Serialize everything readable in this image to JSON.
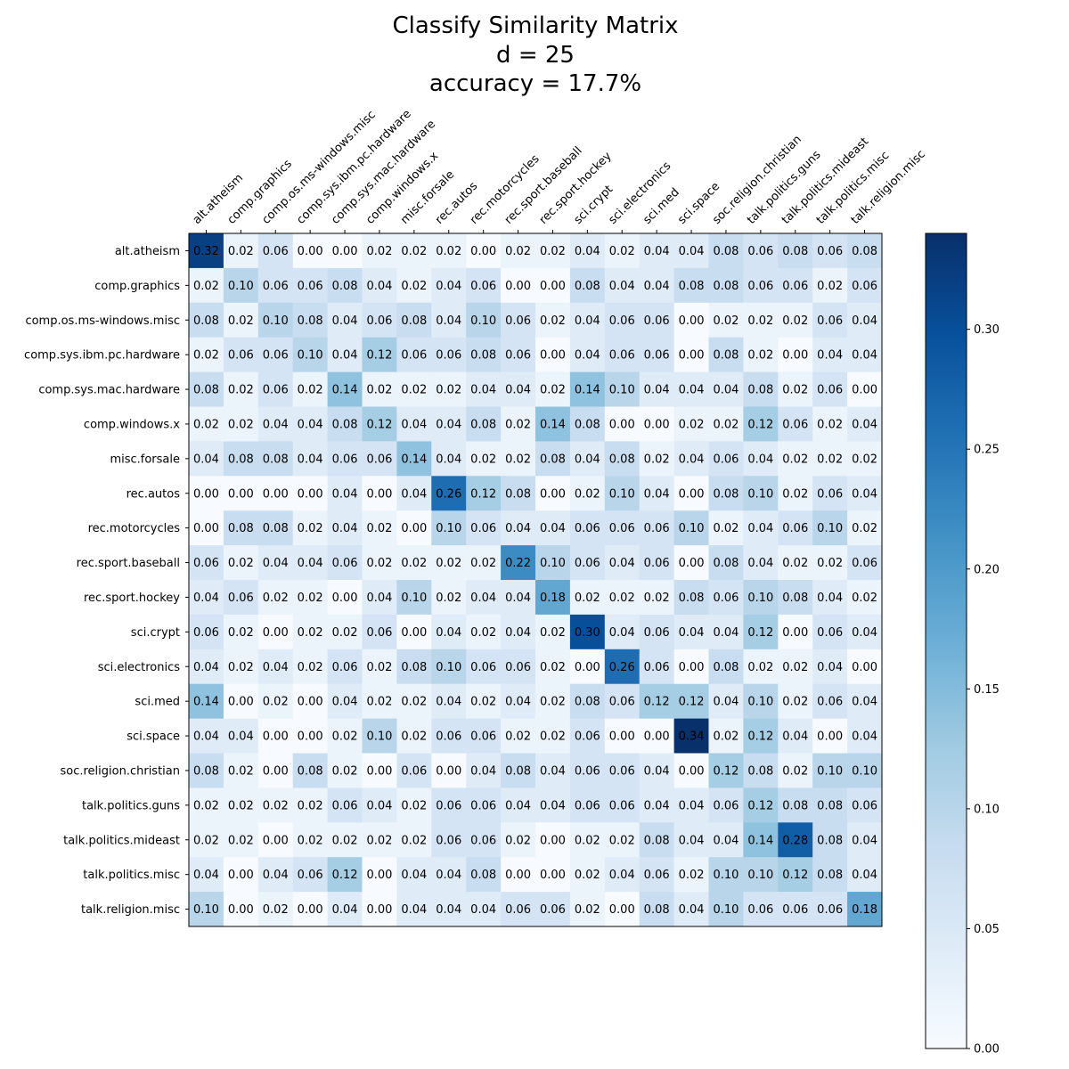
{
  "chart_data": {
    "type": "heatmap",
    "title_lines": [
      "Classify Similarity Matrix",
      "d = 25",
      "accuracy = 17.7%"
    ],
    "labels": [
      "alt.atheism",
      "comp.graphics",
      "comp.os.ms-windows.misc",
      "comp.sys.ibm.pc.hardware",
      "comp.sys.mac.hardware",
      "comp.windows.x",
      "misc.forsale",
      "rec.autos",
      "rec.motorcycles",
      "rec.sport.baseball",
      "rec.sport.hockey",
      "sci.crypt",
      "sci.electronics",
      "sci.med",
      "sci.space",
      "soc.religion.christian",
      "talk.politics.guns",
      "talk.politics.mideast",
      "talk.politics.misc",
      "talk.religion.misc"
    ],
    "matrix": [
      [
        0.32,
        0.02,
        0.06,
        0.0,
        0.0,
        0.02,
        0.02,
        0.02,
        0.0,
        0.02,
        0.02,
        0.04,
        0.02,
        0.04,
        0.04,
        0.08,
        0.06,
        0.08,
        0.06,
        0.08
      ],
      [
        0.02,
        0.1,
        0.06,
        0.06,
        0.08,
        0.04,
        0.02,
        0.04,
        0.06,
        0.0,
        0.0,
        0.08,
        0.04,
        0.04,
        0.08,
        0.08,
        0.06,
        0.06,
        0.02,
        0.06
      ],
      [
        0.08,
        0.02,
        0.1,
        0.08,
        0.04,
        0.06,
        0.08,
        0.04,
        0.1,
        0.06,
        0.02,
        0.04,
        0.06,
        0.06,
        0.0,
        0.02,
        0.02,
        0.02,
        0.06,
        0.04
      ],
      [
        0.02,
        0.06,
        0.06,
        0.1,
        0.04,
        0.12,
        0.06,
        0.06,
        0.08,
        0.06,
        0.0,
        0.04,
        0.06,
        0.06,
        0.0,
        0.08,
        0.02,
        0.0,
        0.04,
        0.04
      ],
      [
        0.08,
        0.02,
        0.06,
        0.02,
        0.14,
        0.02,
        0.02,
        0.02,
        0.04,
        0.04,
        0.02,
        0.14,
        0.1,
        0.04,
        0.04,
        0.04,
        0.08,
        0.02,
        0.06,
        0.0
      ],
      [
        0.02,
        0.02,
        0.04,
        0.04,
        0.08,
        0.12,
        0.04,
        0.04,
        0.08,
        0.02,
        0.14,
        0.08,
        0.0,
        0.0,
        0.02,
        0.02,
        0.12,
        0.06,
        0.02,
        0.04
      ],
      [
        0.04,
        0.08,
        0.08,
        0.04,
        0.06,
        0.06,
        0.14,
        0.04,
        0.02,
        0.02,
        0.08,
        0.04,
        0.08,
        0.02,
        0.04,
        0.06,
        0.04,
        0.02,
        0.02,
        0.02
      ],
      [
        0.0,
        0.0,
        0.0,
        0.0,
        0.04,
        0.0,
        0.04,
        0.26,
        0.12,
        0.08,
        0.0,
        0.02,
        0.1,
        0.04,
        0.0,
        0.08,
        0.1,
        0.02,
        0.06,
        0.04
      ],
      [
        0.0,
        0.08,
        0.08,
        0.02,
        0.04,
        0.02,
        0.0,
        0.1,
        0.06,
        0.04,
        0.04,
        0.06,
        0.06,
        0.06,
        0.1,
        0.02,
        0.04,
        0.06,
        0.1,
        0.02
      ],
      [
        0.06,
        0.02,
        0.04,
        0.04,
        0.06,
        0.02,
        0.02,
        0.02,
        0.02,
        0.22,
        0.1,
        0.06,
        0.04,
        0.06,
        0.0,
        0.08,
        0.04,
        0.02,
        0.02,
        0.06
      ],
      [
        0.04,
        0.06,
        0.02,
        0.02,
        0.0,
        0.04,
        0.1,
        0.02,
        0.04,
        0.04,
        0.18,
        0.02,
        0.02,
        0.02,
        0.08,
        0.06,
        0.1,
        0.08,
        0.04,
        0.02
      ],
      [
        0.06,
        0.02,
        0.0,
        0.02,
        0.02,
        0.06,
        0.0,
        0.04,
        0.02,
        0.04,
        0.02,
        0.3,
        0.04,
        0.06,
        0.04,
        0.04,
        0.12,
        0.0,
        0.06,
        0.04
      ],
      [
        0.04,
        0.02,
        0.04,
        0.02,
        0.06,
        0.02,
        0.08,
        0.1,
        0.06,
        0.06,
        0.02,
        0.0,
        0.26,
        0.06,
        0.0,
        0.08,
        0.02,
        0.02,
        0.04,
        0.0
      ],
      [
        0.14,
        0.0,
        0.02,
        0.0,
        0.04,
        0.02,
        0.02,
        0.04,
        0.02,
        0.04,
        0.02,
        0.08,
        0.06,
        0.12,
        0.12,
        0.04,
        0.1,
        0.02,
        0.06,
        0.04
      ],
      [
        0.04,
        0.04,
        0.0,
        0.0,
        0.02,
        0.1,
        0.02,
        0.06,
        0.06,
        0.02,
        0.02,
        0.06,
        0.0,
        0.0,
        0.34,
        0.02,
        0.12,
        0.04,
        0.0,
        0.04
      ],
      [
        0.08,
        0.02,
        0.0,
        0.08,
        0.02,
        0.0,
        0.06,
        0.0,
        0.04,
        0.08,
        0.04,
        0.06,
        0.06,
        0.04,
        0.0,
        0.12,
        0.08,
        0.02,
        0.1,
        0.1
      ],
      [
        0.02,
        0.02,
        0.02,
        0.02,
        0.06,
        0.04,
        0.02,
        0.06,
        0.06,
        0.04,
        0.04,
        0.06,
        0.06,
        0.04,
        0.04,
        0.06,
        0.12,
        0.08,
        0.08,
        0.06
      ],
      [
        0.02,
        0.02,
        0.0,
        0.02,
        0.02,
        0.02,
        0.02,
        0.06,
        0.06,
        0.02,
        0.0,
        0.02,
        0.02,
        0.08,
        0.04,
        0.04,
        0.14,
        0.28,
        0.08,
        0.04
      ],
      [
        0.04,
        0.0,
        0.04,
        0.06,
        0.12,
        0.0,
        0.04,
        0.04,
        0.08,
        0.0,
        0.0,
        0.02,
        0.04,
        0.06,
        0.02,
        0.1,
        0.1,
        0.12,
        0.08,
        0.04
      ],
      [
        0.1,
        0.0,
        0.02,
        0.0,
        0.04,
        0.0,
        0.04,
        0.04,
        0.04,
        0.06,
        0.06,
        0.02,
        0.0,
        0.08,
        0.04,
        0.1,
        0.06,
        0.06,
        0.06,
        0.18
      ]
    ],
    "value_range": [
      0.0,
      0.34
    ],
    "colormap": "Blues",
    "colorbar_ticks": [
      "0.00",
      "0.05",
      "0.10",
      "0.15",
      "0.20",
      "0.25",
      "0.30"
    ],
    "legend_placement": "right",
    "grid": false
  }
}
